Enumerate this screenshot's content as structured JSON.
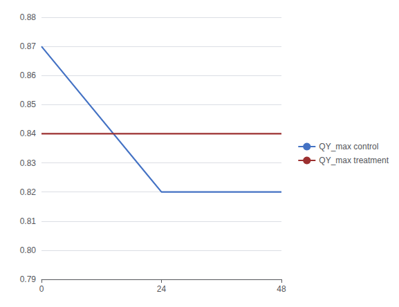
{
  "chart_data": {
    "type": "line",
    "x": [
      0,
      24,
      48
    ],
    "series": [
      {
        "name": "QY_max control",
        "color": "#4472C4",
        "values": [
          0.87,
          0.82,
          0.82
        ]
      },
      {
        "name": "QY_max treatment",
        "color": "#9C3030",
        "values": [
          0.84,
          0.84,
          0.84
        ]
      }
    ],
    "xlim": [
      0,
      48
    ],
    "xticks": [
      0,
      24,
      48
    ],
    "ylim": [
      0.79,
      0.88
    ],
    "yticks": [
      0.79,
      {
        "value": 0.8,
        "label": "0.80"
      },
      0.81,
      0.82,
      0.83,
      0.84,
      0.85,
      0.86,
      0.87,
      0.88
    ],
    "grid": true,
    "legend": "right"
  }
}
